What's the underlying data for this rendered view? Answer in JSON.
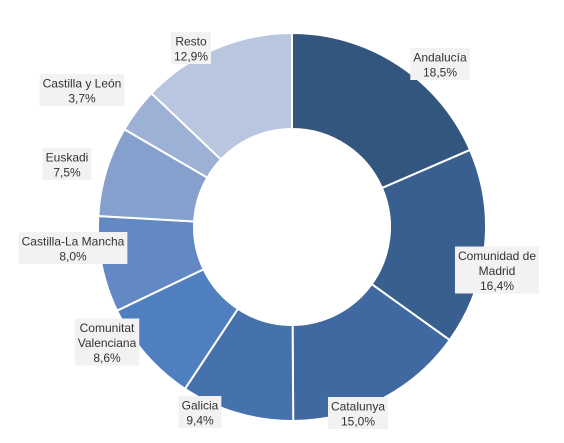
{
  "chart_data": {
    "type": "pie",
    "variant": "donut",
    "title": "",
    "legend": "none",
    "slices": [
      {
        "label": [
          "Andalucía"
        ],
        "value": 18.5,
        "value_text": "18,5%",
        "color": "#33567f"
      },
      {
        "label": [
          "Comunidad de",
          "Madrid"
        ],
        "value": 16.4,
        "value_text": "16,4%",
        "color": "#395f8e"
      },
      {
        "label": [
          "Catalunya"
        ],
        "value": 15.0,
        "value_text": "15,0%",
        "color": "#3f69a0"
      },
      {
        "label": [
          "Galicia"
        ],
        "value": 9.4,
        "value_text": "9,4%",
        "color": "#4572ad"
      },
      {
        "label": [
          "Comunitat",
          "Valenciana"
        ],
        "value": 8.6,
        "value_text": "8,6%",
        "color": "#4f7fbf"
      },
      {
        "label": [
          "Castilla-La Mancha"
        ],
        "value": 8.0,
        "value_text": "8,0%",
        "color": "#6389c4"
      },
      {
        "label": [
          "Euskadi"
        ],
        "value": 7.5,
        "value_text": "7,5%",
        "color": "#86a0cd"
      },
      {
        "label": [
          "Castilla y León"
        ],
        "value": 3.7,
        "value_text": "3,7%",
        "color": "#9db0d6"
      },
      {
        "label": [
          "Resto"
        ],
        "value": 12.9,
        "value_text": "12,9%",
        "color": "#b9c6e0"
      }
    ]
  }
}
